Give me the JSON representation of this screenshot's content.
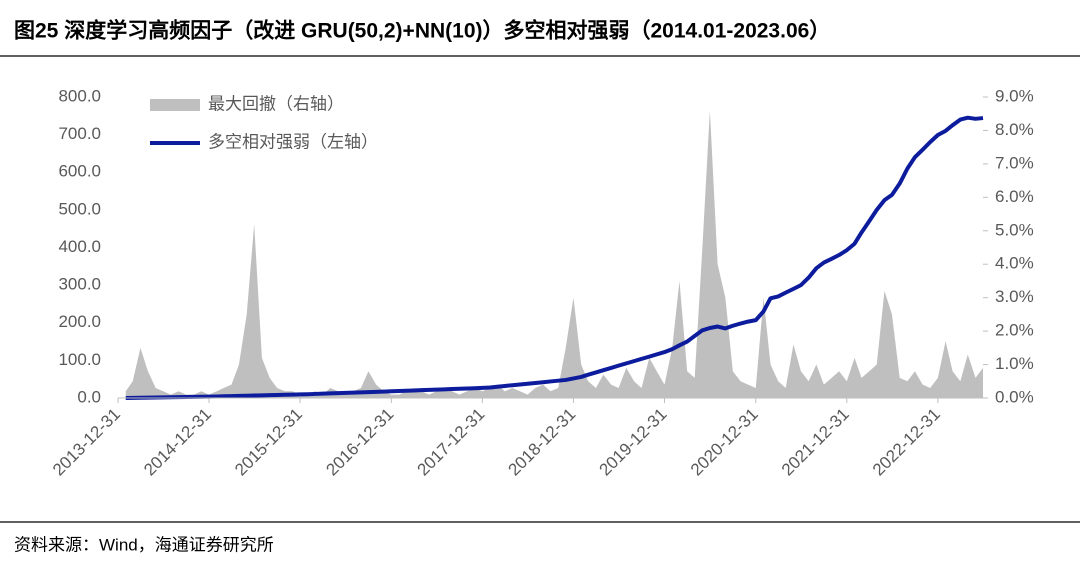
{
  "chart_data": {
    "type": "line-area",
    "title": "图25 深度学习高频因子（改进 GRU(50,2)+NN(10)）多空相对强弱（2014.01-2023.06）",
    "source": "资料来源：Wind，海通证券研究所",
    "x": [
      "2014-01",
      "2014-02",
      "2014-03",
      "2014-04",
      "2014-05",
      "2014-06",
      "2014-07",
      "2014-08",
      "2014-09",
      "2014-10",
      "2014-11",
      "2014-12",
      "2015-01",
      "2015-02",
      "2015-03",
      "2015-04",
      "2015-05",
      "2015-06",
      "2015-07",
      "2015-08",
      "2015-09",
      "2015-10",
      "2015-11",
      "2015-12",
      "2016-01",
      "2016-02",
      "2016-03",
      "2016-04",
      "2016-05",
      "2016-06",
      "2016-07",
      "2016-08",
      "2016-09",
      "2016-10",
      "2016-11",
      "2016-12",
      "2017-01",
      "2017-02",
      "2017-03",
      "2017-04",
      "2017-05",
      "2017-06",
      "2017-07",
      "2017-08",
      "2017-09",
      "2017-10",
      "2017-11",
      "2017-12",
      "2018-01",
      "2018-02",
      "2018-03",
      "2018-04",
      "2018-05",
      "2018-06",
      "2018-07",
      "2018-08",
      "2018-09",
      "2018-10",
      "2018-11",
      "2018-12",
      "2019-01",
      "2019-02",
      "2019-03",
      "2019-04",
      "2019-05",
      "2019-06",
      "2019-07",
      "2019-08",
      "2019-09",
      "2019-10",
      "2019-11",
      "2019-12",
      "2020-01",
      "2020-02",
      "2020-03",
      "2020-04",
      "2020-05",
      "2020-06",
      "2020-07",
      "2020-08",
      "2020-09",
      "2020-10",
      "2020-11",
      "2020-12",
      "2021-01",
      "2021-02",
      "2021-03",
      "2021-04",
      "2021-05",
      "2021-06",
      "2021-07",
      "2021-08",
      "2021-09",
      "2021-10",
      "2021-11",
      "2021-12",
      "2022-01",
      "2022-02",
      "2022-03",
      "2022-04",
      "2022-05",
      "2022-06",
      "2022-07",
      "2022-08",
      "2022-09",
      "2022-10",
      "2022-11",
      "2022-12",
      "2023-01",
      "2023-02",
      "2023-03",
      "2023-04",
      "2023-05",
      "2023-06"
    ],
    "series": [
      {
        "name": "最大回撤（右轴）",
        "color": "#bfbfbf",
        "kind": "area",
        "axis": "y2",
        "values": [
          0.2,
          0.5,
          1.5,
          0.8,
          0.3,
          0.2,
          0.1,
          0.2,
          0.1,
          0.1,
          0.2,
          0.1,
          0.2,
          0.3,
          0.4,
          1.0,
          2.5,
          5.2,
          1.2,
          0.6,
          0.3,
          0.2,
          0.2,
          0.1,
          0.1,
          0.2,
          0.1,
          0.3,
          0.2,
          0.1,
          0.2,
          0.3,
          0.8,
          0.4,
          0.2,
          0.1,
          0.1,
          0.2,
          0.3,
          0.2,
          0.1,
          0.2,
          0.3,
          0.2,
          0.1,
          0.2,
          0.3,
          0.2,
          0.3,
          0.4,
          0.2,
          0.3,
          0.2,
          0.1,
          0.3,
          0.4,
          0.2,
          0.3,
          1.5,
          3.0,
          1.0,
          0.5,
          0.3,
          0.7,
          0.4,
          0.3,
          0.9,
          0.5,
          0.3,
          1.2,
          0.8,
          0.4,
          1.5,
          3.5,
          0.8,
          0.6,
          4.5,
          8.6,
          4.0,
          3.0,
          0.8,
          0.5,
          0.4,
          0.3,
          3.0,
          1.0,
          0.5,
          0.3,
          1.6,
          0.8,
          0.5,
          1.0,
          0.4,
          0.6,
          0.8,
          0.5,
          1.2,
          0.6,
          0.8,
          1.0,
          3.2,
          2.5,
          0.6,
          0.5,
          0.8,
          0.4,
          0.3,
          0.6,
          1.7,
          0.8,
          0.5,
          1.3,
          0.6,
          0.9
        ]
      },
      {
        "name": "多空相对强弱（左轴）",
        "color": "#0c1c9c",
        "kind": "line",
        "values": [
          0,
          0.3,
          0.6,
          1,
          1.3,
          1.6,
          2,
          2.3,
          2.6,
          3,
          3.3,
          3.6,
          4,
          4.5,
          5,
          5.5,
          6,
          6.5,
          7,
          7.5,
          8,
          8.5,
          9,
          9.5,
          10,
          10.8,
          11.5,
          12.2,
          13,
          13.7,
          14.4,
          15,
          15.7,
          16.4,
          17,
          17.8,
          18.5,
          19.2,
          20,
          20.8,
          21.5,
          22.2,
          23,
          23.8,
          24.5,
          25.3,
          26,
          27,
          28,
          30,
          32,
          34,
          36,
          38,
          40,
          42,
          44,
          46,
          48,
          52,
          56,
          62,
          68,
          74,
          80,
          86,
          92,
          98,
          104,
          110,
          116,
          122,
          130,
          140,
          150,
          165,
          180,
          186,
          190,
          185,
          192,
          198,
          203,
          207,
          230,
          265,
          270,
          280,
          290,
          300,
          320,
          345,
          360,
          370,
          380,
          393,
          410,
          440,
          470,
          500,
          526,
          540,
          570,
          610,
          640,
          660,
          680,
          699,
          710,
          725,
          740,
          745,
          742,
          744
        ]
      }
    ],
    "xlim": [
      "2013-12-31",
      "2023-06-30"
    ],
    "xticks": [
      "2013-12-31",
      "2014-12-31",
      "2015-12-31",
      "2016-12-31",
      "2017-12-31",
      "2018-12-31",
      "2019-12-31",
      "2020-12-31",
      "2021-12-31",
      "2022-12-31"
    ],
    "ylim": [
      0,
      800
    ],
    "yticks": [
      {
        "value": 0,
        "label": "0.0"
      },
      {
        "value": 100,
        "label": "100.0"
      },
      {
        "value": 200,
        "label": "200.0"
      },
      {
        "value": 300,
        "label": "300.0"
      },
      {
        "value": 400,
        "label": "400.0"
      },
      {
        "value": 500,
        "label": "500.0"
      },
      {
        "value": 600,
        "label": "600.0"
      },
      {
        "value": 700,
        "label": "700.0"
      },
      {
        "value": 800,
        "label": "800.0"
      }
    ],
    "y2lim": [
      0,
      9
    ],
    "y2ticks": [
      {
        "value": 0,
        "label": "0.0%"
      },
      {
        "value": 1,
        "label": "1.0%"
      },
      {
        "value": 2,
        "label": "2.0%"
      },
      {
        "value": 3,
        "label": "3.0%"
      },
      {
        "value": 4,
        "label": "4.0%"
      },
      {
        "value": 5,
        "label": "5.0%"
      },
      {
        "value": 6,
        "label": "6.0%"
      },
      {
        "value": 7,
        "label": "7.0%"
      },
      {
        "value": 8,
        "label": "8.0%"
      },
      {
        "value": 9,
        "label": "9.0%"
      }
    ]
  }
}
